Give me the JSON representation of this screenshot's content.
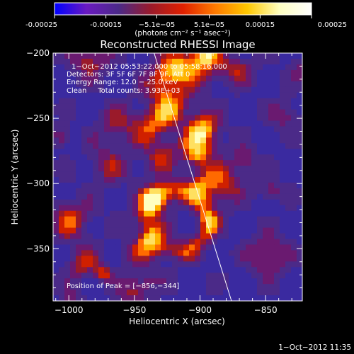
{
  "chart_data": {
    "type": "heatmap",
    "title": "Reconstructed RHESSI Image",
    "xlabel": "Heliocentric X (arcsec)",
    "ylabel": "Heliocentric Y (arcsec)",
    "xlim": [
      -1012,
      -822
    ],
    "ylim": [
      -390,
      -200
    ],
    "x_ticks": [
      -1000,
      -950,
      -900,
      -850
    ],
    "x_tick_labels": [
      "−1000",
      "−950",
      "−900",
      "−850"
    ],
    "y_ticks": [
      -200,
      -250,
      -300,
      -350
    ],
    "y_tick_labels": [
      "−200",
      "−250",
      "−300",
      "−350"
    ],
    "colorbar": {
      "min": -0.00025,
      "max": 0.00025,
      "ticks": [
        -0.00025,
        -0.00015,
        -5.1e-05,
        5.1e-05,
        0.00015,
        0.00025
      ],
      "tick_labels": [
        "-0.00025",
        "-0.00015",
        "−5.1e−05",
        "5.1e−05",
        "0.00015",
        "0.00025"
      ],
      "unit_label": "(photons cm⁻² s⁻¹ asec⁻²)"
    },
    "annotations": {
      "time_range": "1−Oct−2012 05:53:22.000 to 05:58:16.000",
      "detectors": "Detectors: 3F 5F 6F 7F 8F 9F, Att 0",
      "energy_range": "Energy Range: 12.0 − 25.0 keV",
      "clean_total": "Clean     Total counts: 3.93E+03",
      "peak_position": "Position of Peak = [−856,−344]"
    },
    "limb_line": {
      "x": [
        -935,
        -876
      ],
      "y": [
        -200,
        -390
      ]
    },
    "grid": false,
    "colormap": [
      "#0000ff",
      "#6a1ac0",
      "#4b2a88",
      "#9a1a2a",
      "#e02000",
      "#ff7a00",
      "#ffc800",
      "#ffffc0",
      "#ffffff"
    ]
  },
  "footer": {
    "timestamp": "1−Oct−2012 11:35"
  }
}
